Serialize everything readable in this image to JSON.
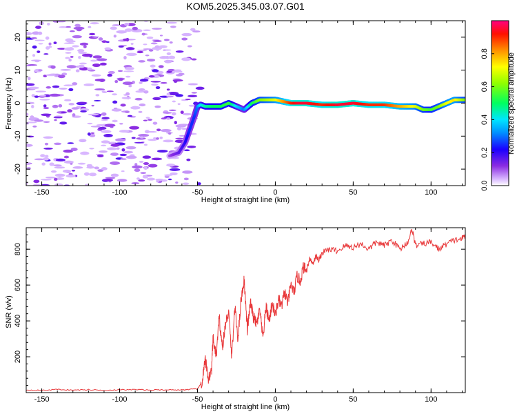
{
  "title": "KOM5.2025.345.03.07.G01",
  "chart_data": [
    {
      "type": "heatmap",
      "xlabel": "Height of straight line (km)",
      "ylabel": "Frequency (Hz)",
      "xlim": [
        -160,
        122
      ],
      "ylim": [
        -25,
        25
      ],
      "xticks": [
        -150,
        -100,
        -50,
        0,
        50,
        100
      ],
      "yticks": [
        -20,
        -10,
        0,
        10,
        20
      ],
      "colorbar": {
        "label": "Normalized spectral amplitude",
        "range": [
          0,
          1
        ],
        "ticks": [
          0.0,
          0.2,
          0.4,
          0.6,
          0.8
        ]
      },
      "ridge": {
        "x": [
          -68,
          -62,
          -58,
          -55,
          -52,
          -50,
          -48,
          -45,
          -40,
          -35,
          -30,
          -25,
          -20,
          -15,
          -10,
          -5,
          0,
          5,
          10,
          15,
          20,
          30,
          40,
          50,
          60,
          70,
          80,
          90,
          95,
          100,
          105,
          110,
          115,
          122
        ],
        "freq": [
          -16,
          -15,
          -12,
          -8,
          -4,
          -1,
          -0.5,
          -1,
          -1,
          -1,
          0,
          -1,
          -2,
          0,
          1,
          1,
          1,
          0.5,
          0,
          0,
          0,
          -0.5,
          -0.5,
          0,
          -0.5,
          -0.5,
          -1,
          -1,
          -2,
          -2,
          -1,
          0,
          1,
          1
        ],
        "amplitude": [
          0.1,
          0.15,
          0.2,
          0.25,
          0.25,
          0.3,
          0.4,
          0.45,
          0.5,
          0.5,
          0.55,
          0.4,
          0.3,
          0.5,
          0.6,
          0.65,
          0.7,
          0.8,
          0.9,
          0.95,
          0.95,
          0.9,
          0.95,
          0.95,
          0.9,
          0.9,
          0.8,
          0.7,
          0.6,
          0.55,
          0.6,
          0.7,
          0.75,
          0.6
        ]
      }
    },
    {
      "type": "line",
      "xlabel": "Height of straight line (km)",
      "ylabel": "SNR (v/v)",
      "xlim": [
        -160,
        122
      ],
      "ylim": [
        0,
        920
      ],
      "xticks": [
        -150,
        -100,
        -50,
        0,
        50,
        100
      ],
      "yticks": [
        200,
        400,
        600,
        800
      ],
      "series": [
        {
          "name": "SNR",
          "color": "#e8383a",
          "x": [
            -160,
            -150,
            -140,
            -130,
            -120,
            -110,
            -100,
            -90,
            -80,
            -70,
            -60,
            -55,
            -50,
            -47,
            -45,
            -43,
            -41,
            -40,
            -38,
            -36,
            -34,
            -32,
            -30,
            -28,
            -26,
            -24,
            -22,
            -20,
            -18,
            -16,
            -14,
            -12,
            -10,
            -8,
            -6,
            -4,
            -2,
            0,
            2,
            4,
            6,
            8,
            10,
            12,
            14,
            16,
            18,
            20,
            22,
            24,
            26,
            28,
            30,
            35,
            40,
            45,
            50,
            55,
            60,
            65,
            70,
            75,
            80,
            85,
            88,
            90,
            95,
            100,
            105,
            110,
            115,
            120,
            122
          ],
          "values": [
            15,
            12,
            18,
            14,
            16,
            13,
            15,
            17,
            14,
            16,
            15,
            18,
            20,
            60,
            180,
            80,
            120,
            300,
            200,
            420,
            250,
            380,
            450,
            200,
            480,
            300,
            520,
            630,
            350,
            500,
            420,
            380,
            460,
            300,
            480,
            400,
            500,
            430,
            520,
            480,
            560,
            500,
            600,
            560,
            650,
            620,
            700,
            680,
            750,
            720,
            760,
            740,
            780,
            800,
            790,
            820,
            810,
            830,
            800,
            840,
            820,
            850,
            800,
            840,
            910,
            820,
            830,
            840,
            800,
            830,
            850,
            860,
            880
          ]
        }
      ]
    }
  ]
}
